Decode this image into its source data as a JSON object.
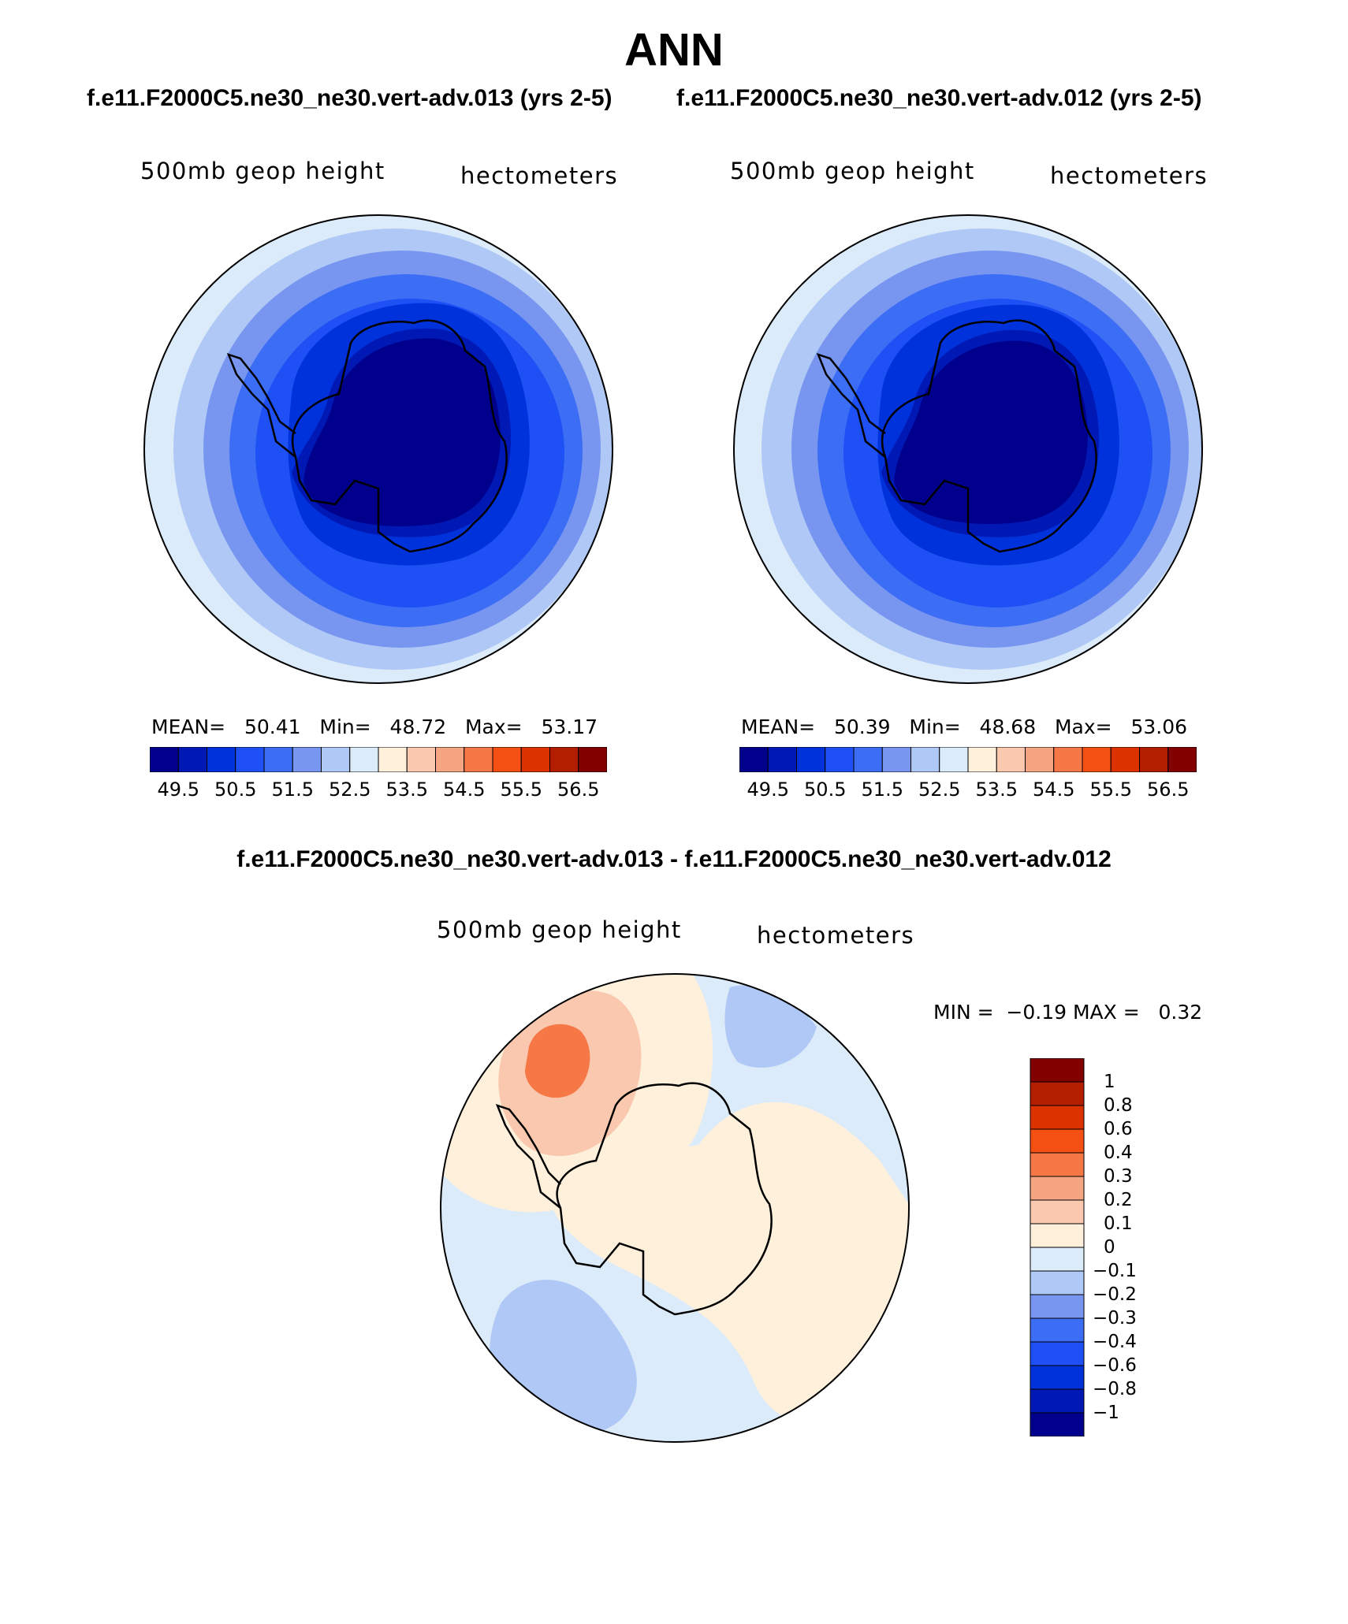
{
  "title": "ANN",
  "subtitle_left": "f.e11.F2000C5.ne30_ne30.vert-adv.013 (yrs 2-5)",
  "subtitle_right": "f.e11.F2000C5.ne30_ne30.vert-adv.012 (yrs 2-5)",
  "diff_title": "f.e11.F2000C5.ne30_ne30.vert-adv.013 - f.e11.F2000C5.ne30_ne30.vert-adv.012",
  "panels": [
    {
      "variable": "500mb geop height",
      "units": "hectometers",
      "stats": {
        "mean_label": "MEAN=",
        "mean": "50.41",
        "min_label": "Min=",
        "min": "48.72",
        "max_label": "Max=",
        "max": "53.17"
      }
    },
    {
      "variable": "500mb geop height",
      "units": "hectometers",
      "stats": {
        "mean_label": "MEAN=",
        "mean": "50.39",
        "min_label": "Min=",
        "min": "48.68",
        "max_label": "Max=",
        "max": "53.06"
      }
    }
  ],
  "diff_panel": {
    "variable": "500mb geop height",
    "units": "hectometers",
    "minmax_text": "MIN =  −0.19 MAX =   0.32"
  },
  "colorbar_horizontal": {
    "colors": [
      "#00008c",
      "#0019b4",
      "#0032dc",
      "#1e50f5",
      "#3c6ef5",
      "#7896f0",
      "#afc8f5",
      "#dcebfa",
      "#fff0dc",
      "#fac8af",
      "#f5a582",
      "#f57846",
      "#f55014",
      "#dc3200",
      "#b41e00",
      "#820000"
    ],
    "labels": [
      "49.5",
      "50.5",
      "51.5",
      "52.5",
      "53.5",
      "54.5",
      "55.5",
      "56.5"
    ]
  },
  "colorbar_vertical": {
    "colors_top_to_bottom": [
      "#820000",
      "#b41e00",
      "#dc3200",
      "#f55014",
      "#f57846",
      "#f5a582",
      "#fac8af",
      "#fff0dc",
      "#dcebfa",
      "#afc8f5",
      "#7896f0",
      "#3c6ef5",
      "#1e50f5",
      "#0032dc",
      "#0019b4",
      "#00008c"
    ],
    "labels": [
      "1",
      "0.8",
      "0.6",
      "0.4",
      "0.3",
      "0.2",
      "0.1",
      "0",
      "−0.1",
      "−0.2",
      "−0.3",
      "−0.4",
      "−0.6",
      "−0.8",
      "−1"
    ]
  }
}
